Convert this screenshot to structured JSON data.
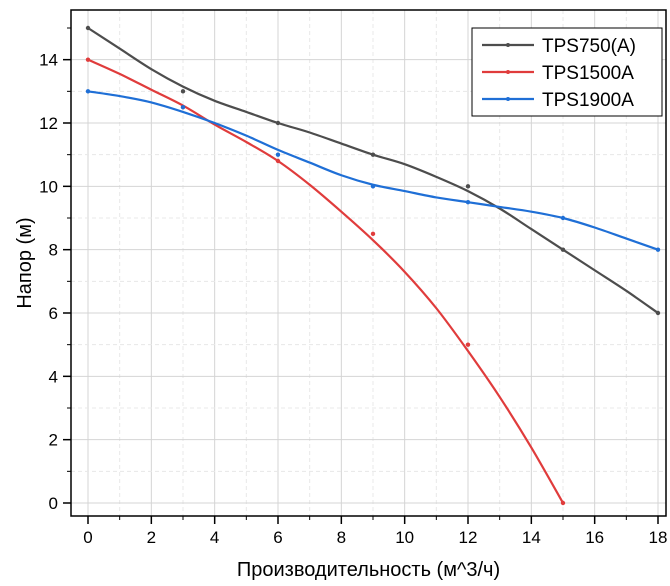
{
  "chart_data": {
    "type": "line",
    "title": "",
    "xlabel": "Производительность (м^3/ч)",
    "ylabel": "Напор (м)",
    "xlim": [
      0,
      18
    ],
    "ylim": [
      0,
      15
    ],
    "x_ticks": [
      "0",
      "2",
      "4",
      "6",
      "8",
      "10",
      "12",
      "14",
      "16",
      "18"
    ],
    "y_ticks": [
      "0",
      "2",
      "4",
      "6",
      "8",
      "10",
      "12",
      "14"
    ],
    "grid": true,
    "legend_position": "top-right",
    "series": [
      {
        "name": "TPS750(A)",
        "color": "#4d4d4d",
        "points": [
          [
            0,
            15
          ],
          [
            3,
            13
          ],
          [
            6,
            12
          ],
          [
            9,
            11
          ],
          [
            12,
            10
          ],
          [
            15,
            8
          ],
          [
            18,
            6
          ]
        ],
        "curve": [
          [
            0,
            15
          ],
          [
            1,
            14.35
          ],
          [
            2,
            13.7
          ],
          [
            3,
            13.15
          ],
          [
            4,
            12.7
          ],
          [
            5,
            12.35
          ],
          [
            6,
            12.0
          ],
          [
            7,
            11.7
          ],
          [
            8,
            11.35
          ],
          [
            9,
            11.0
          ],
          [
            10,
            10.7
          ],
          [
            11,
            10.3
          ],
          [
            12,
            9.85
          ],
          [
            13,
            9.3
          ],
          [
            14,
            8.65
          ],
          [
            15,
            8.0
          ],
          [
            16,
            7.35
          ],
          [
            17,
            6.7
          ],
          [
            18,
            6.0
          ]
        ]
      },
      {
        "name": "TPS1500A",
        "color": "#e03c3c",
        "points": [
          [
            0,
            14
          ],
          [
            3,
            12.5
          ],
          [
            6,
            10.8
          ],
          [
            9,
            8.5
          ],
          [
            12,
            5
          ],
          [
            15,
            0
          ]
        ],
        "curve": [
          [
            0,
            14
          ],
          [
            1,
            13.55
          ],
          [
            2,
            13.05
          ],
          [
            3,
            12.55
          ],
          [
            4,
            11.95
          ],
          [
            5,
            11.4
          ],
          [
            6,
            10.8
          ],
          [
            7,
            10.05
          ],
          [
            8,
            9.2
          ],
          [
            9,
            8.3
          ],
          [
            10,
            7.3
          ],
          [
            11,
            6.15
          ],
          [
            12,
            4.8
          ],
          [
            13,
            3.35
          ],
          [
            14,
            1.75
          ],
          [
            15,
            0
          ]
        ]
      },
      {
        "name": "TPS1900A",
        "color": "#1f6fd6",
        "points": [
          [
            0,
            13
          ],
          [
            3,
            12.5
          ],
          [
            6,
            11
          ],
          [
            9,
            10
          ],
          [
            12,
            9.5
          ],
          [
            15,
            9
          ],
          [
            18,
            8
          ]
        ],
        "curve": [
          [
            0,
            13
          ],
          [
            1,
            12.85
          ],
          [
            2,
            12.65
          ],
          [
            3,
            12.35
          ],
          [
            4,
            12.0
          ],
          [
            5,
            11.6
          ],
          [
            6,
            11.15
          ],
          [
            7,
            10.75
          ],
          [
            8,
            10.35
          ],
          [
            9,
            10.05
          ],
          [
            10,
            9.85
          ],
          [
            11,
            9.65
          ],
          [
            12,
            9.5
          ],
          [
            13,
            9.35
          ],
          [
            14,
            9.2
          ],
          [
            15,
            9.0
          ],
          [
            16,
            8.7
          ],
          [
            17,
            8.35
          ],
          [
            18,
            8.0
          ]
        ]
      }
    ]
  }
}
